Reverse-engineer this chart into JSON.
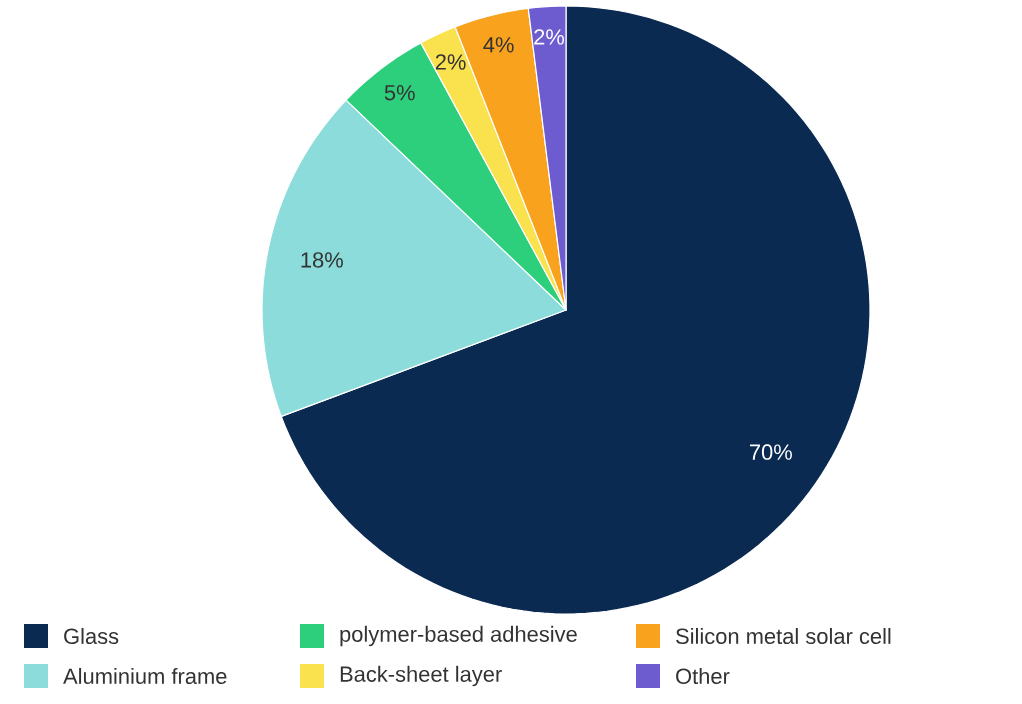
{
  "chart_data": {
    "type": "pie",
    "categories": [
      "Glass",
      "Aluminium frame",
      "polymer-based adhesive",
      "Back-sheet layer",
      "Silicon metal solar cell",
      "Other"
    ],
    "values": [
      70,
      18,
      5,
      2,
      4,
      2
    ],
    "colors": [
      "#0b2a52",
      "#8ddcdc",
      "#2ecf7c",
      "#fae14e",
      "#f8a21e",
      "#6d5bd0"
    ],
    "value_labels": [
      "70%",
      "18%",
      "5%",
      "2%",
      "4%",
      "2%"
    ],
    "legend": "bottom"
  }
}
